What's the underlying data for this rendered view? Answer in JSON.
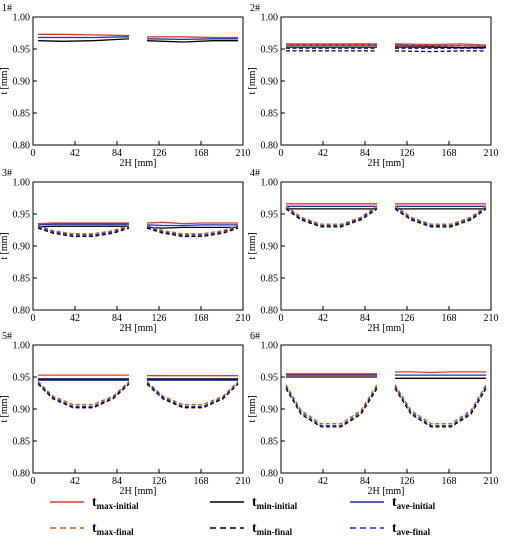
{
  "chart_data": {
    "type": "line",
    "xlabel": "2H [mm]",
    "ylabel": "t [mm]",
    "xlim": [
      0,
      210
    ],
    "ylim": [
      0.8,
      1.0
    ],
    "xticks": [
      "0",
      "42",
      "84",
      "126",
      "168",
      "210"
    ],
    "yticks": [
      "0.80",
      "0.85",
      "0.90",
      "0.95",
      "1.00"
    ],
    "series_styles": [
      {
        "key": "max_initial",
        "color": "#e0382e",
        "dash": "solid"
      },
      {
        "key": "min_initial",
        "color": "#000000",
        "dash": "solid"
      },
      {
        "key": "ave_initial",
        "color": "#1f2dbf",
        "dash": "solid"
      },
      {
        "key": "max_final",
        "color": "#c86414",
        "dash": "dashed"
      },
      {
        "key": "min_final",
        "color": "#000000",
        "dash": "dashed"
      },
      {
        "key": "ave_final",
        "color": "#1f2dbf",
        "dash": "dashed"
      }
    ],
    "legend": {
      "placement": "bottom",
      "entries": [
        {
          "key": "max_initial",
          "main": "t",
          "sub": "max-initial"
        },
        {
          "key": "min_initial",
          "main": "t",
          "sub": "min-initial"
        },
        {
          "key": "ave_initial",
          "main": "t",
          "sub": "ave-initial"
        },
        {
          "key": "max_final",
          "main": "t",
          "sub": "max-final"
        },
        {
          "key": "min_final",
          "main": "t",
          "sub": "min-final"
        },
        {
          "key": "ave_final",
          "main": "t",
          "sub": "ave-final"
        }
      ]
    },
    "panels": [
      {
        "label": "1#",
        "segments": [
          {
            "x": [
              5,
              30,
              60,
              96
            ],
            "series": {
              "max_initial": [
                0.973,
                0.973,
                0.972,
                0.971
              ],
              "min_initial": [
                0.963,
                0.962,
                0.963,
                0.966
              ],
              "ave_initial": [
                0.968,
                0.968,
                0.968,
                0.969
              ],
              "max_final": null,
              "min_final": null,
              "ave_final": null
            }
          },
          {
            "x": [
              114,
              150,
              180,
              205
            ],
            "series": {
              "max_initial": [
                0.969,
                0.969,
                0.968,
                0.968
              ],
              "min_initial": [
                0.963,
                0.961,
                0.963,
                0.963
              ],
              "ave_initial": [
                0.966,
                0.965,
                0.966,
                0.966
              ],
              "max_final": null,
              "min_final": null,
              "ave_final": null
            }
          }
        ]
      },
      {
        "label": "2#",
        "segments": [
          {
            "x": [
              5,
              30,
              60,
              96
            ],
            "series": {
              "max_initial": [
                0.958,
                0.958,
                0.958,
                0.958
              ],
              "min_initial": [
                0.953,
                0.953,
                0.953,
                0.953
              ],
              "ave_initial": [
                0.956,
                0.956,
                0.956,
                0.956
              ],
              "max_final": [
                0.956,
                0.956,
                0.956,
                0.956
              ],
              "min_final": [
                0.947,
                0.947,
                0.947,
                0.947
              ],
              "ave_final": [
                0.951,
                0.951,
                0.951,
                0.951
              ]
            }
          },
          {
            "x": [
              114,
              150,
              180,
              205
            ],
            "series": {
              "max_initial": [
                0.958,
                0.957,
                0.958,
                0.956
              ],
              "min_initial": [
                0.953,
                0.953,
                0.952,
                0.952
              ],
              "ave_initial": [
                0.956,
                0.955,
                0.955,
                0.954
              ],
              "max_final": [
                0.955,
                0.955,
                0.955,
                0.955
              ],
              "min_final": [
                0.947,
                0.946,
                0.947,
                0.947
              ],
              "ave_final": [
                0.951,
                0.951,
                0.951,
                0.951
              ]
            }
          }
        ]
      },
      {
        "label": "3#",
        "segments": [
          {
            "x": [
              5,
              20,
              40,
              60,
              80,
              96
            ],
            "series": {
              "max_initial": [
                0.935,
                0.936,
                0.936,
                0.936,
                0.936,
                0.936
              ],
              "min_initial": [
                0.93,
                0.931,
                0.931,
                0.931,
                0.931,
                0.931
              ],
              "ave_initial": [
                0.933,
                0.934,
                0.934,
                0.934,
                0.934,
                0.934
              ],
              "max_final": [
                0.932,
                0.924,
                0.919,
                0.919,
                0.924,
                0.932
              ],
              "min_final": [
                0.928,
                0.92,
                0.915,
                0.915,
                0.92,
                0.928
              ],
              "ave_final": [
                0.93,
                0.922,
                0.917,
                0.917,
                0.922,
                0.93
              ]
            }
          },
          {
            "x": [
              114,
              130,
              150,
              170,
              190,
              205
            ],
            "series": {
              "max_initial": [
                0.936,
                0.937,
                0.935,
                0.936,
                0.936,
                0.936
              ],
              "min_initial": [
                0.929,
                0.928,
                0.929,
                0.929,
                0.929,
                0.929
              ],
              "ave_initial": [
                0.933,
                0.932,
                0.932,
                0.933,
                0.933,
                0.933
              ],
              "max_final": [
                0.932,
                0.924,
                0.919,
                0.919,
                0.924,
                0.932
              ],
              "min_final": [
                0.928,
                0.92,
                0.915,
                0.915,
                0.92,
                0.928
              ],
              "ave_final": [
                0.93,
                0.922,
                0.917,
                0.917,
                0.922,
                0.93
              ]
            }
          }
        ]
      },
      {
        "label": "4#",
        "segments": [
          {
            "x": [
              5,
              20,
              40,
              60,
              80,
              96
            ],
            "series": {
              "max_initial": [
                0.966,
                0.966,
                0.966,
                0.966,
                0.966,
                0.966
              ],
              "min_initial": [
                0.958,
                0.958,
                0.958,
                0.958,
                0.958,
                0.958
              ],
              "ave_initial": [
                0.962,
                0.962,
                0.962,
                0.962,
                0.962,
                0.962
              ],
              "max_final": [
                0.963,
                0.945,
                0.934,
                0.934,
                0.945,
                0.963
              ],
              "min_final": [
                0.958,
                0.941,
                0.93,
                0.93,
                0.941,
                0.958
              ],
              "ave_final": [
                0.96,
                0.943,
                0.932,
                0.932,
                0.943,
                0.96
              ]
            }
          },
          {
            "x": [
              114,
              130,
              150,
              170,
              190,
              205
            ],
            "series": {
              "max_initial": [
                0.966,
                0.966,
                0.966,
                0.966,
                0.966,
                0.966
              ],
              "min_initial": [
                0.958,
                0.958,
                0.958,
                0.958,
                0.958,
                0.958
              ],
              "ave_initial": [
                0.962,
                0.962,
                0.962,
                0.962,
                0.962,
                0.962
              ],
              "max_final": [
                0.963,
                0.945,
                0.934,
                0.934,
                0.945,
                0.963
              ],
              "min_final": [
                0.958,
                0.941,
                0.93,
                0.93,
                0.941,
                0.958
              ],
              "ave_final": [
                0.96,
                0.943,
                0.932,
                0.932,
                0.943,
                0.96
              ]
            }
          }
        ]
      },
      {
        "label": "5#",
        "segments": [
          {
            "x": [
              5,
              20,
              40,
              60,
              80,
              96
            ],
            "series": {
              "max_initial": [
                0.953,
                0.953,
                0.953,
                0.953,
                0.953,
                0.953
              ],
              "min_initial": [
                0.947,
                0.947,
                0.947,
                0.947,
                0.947,
                0.947
              ],
              "ave_initial": [
                0.945,
                0.945,
                0.945,
                0.945,
                0.945,
                0.945
              ],
              "max_final": [
                0.943,
                0.92,
                0.907,
                0.907,
                0.92,
                0.943
              ],
              "min_final": [
                0.939,
                0.916,
                0.902,
                0.902,
                0.916,
                0.939
              ],
              "ave_final": [
                0.941,
                0.918,
                0.904,
                0.904,
                0.918,
                0.941
              ]
            }
          },
          {
            "x": [
              114,
              130,
              150,
              170,
              190,
              205
            ],
            "series": {
              "max_initial": [
                0.952,
                0.952,
                0.952,
                0.952,
                0.952,
                0.952
              ],
              "min_initial": [
                0.947,
                0.947,
                0.947,
                0.947,
                0.947,
                0.947
              ],
              "ave_initial": [
                0.945,
                0.945,
                0.945,
                0.945,
                0.945,
                0.945
              ],
              "max_final": [
                0.943,
                0.92,
                0.907,
                0.907,
                0.92,
                0.943
              ],
              "min_final": [
                0.939,
                0.916,
                0.902,
                0.902,
                0.916,
                0.939
              ],
              "ave_final": [
                0.941,
                0.918,
                0.904,
                0.904,
                0.918,
                0.941
              ]
            }
          }
        ]
      },
      {
        "label": "6#",
        "segments": [
          {
            "x": [
              5,
              20,
              40,
              60,
              80,
              96
            ],
            "series": {
              "max_initial": [
                0.955,
                0.955,
                0.955,
                0.955,
                0.955,
                0.955
              ],
              "min_initial": [
                0.95,
                0.95,
                0.95,
                0.95,
                0.95,
                0.95
              ],
              "ave_initial": [
                0.953,
                0.953,
                0.953,
                0.953,
                0.953,
                0.953
              ],
              "max_final": [
                0.938,
                0.898,
                0.877,
                0.877,
                0.898,
                0.938
              ],
              "min_final": [
                0.932,
                0.892,
                0.872,
                0.872,
                0.892,
                0.932
              ],
              "ave_final": [
                0.935,
                0.895,
                0.874,
                0.874,
                0.895,
                0.935
              ]
            }
          },
          {
            "x": [
              114,
              130,
              150,
              170,
              190,
              205
            ],
            "series": {
              "max_initial": [
                0.958,
                0.958,
                0.957,
                0.958,
                0.958,
                0.958
              ],
              "min_initial": [
                0.948,
                0.948,
                0.948,
                0.948,
                0.948,
                0.948
              ],
              "ave_initial": [
                0.953,
                0.953,
                0.953,
                0.953,
                0.953,
                0.953
              ],
              "max_final": [
                0.938,
                0.898,
                0.877,
                0.877,
                0.898,
                0.938
              ],
              "min_final": [
                0.932,
                0.892,
                0.872,
                0.872,
                0.892,
                0.932
              ],
              "ave_final": [
                0.935,
                0.895,
                0.874,
                0.874,
                0.895,
                0.935
              ]
            }
          }
        ]
      }
    ]
  }
}
